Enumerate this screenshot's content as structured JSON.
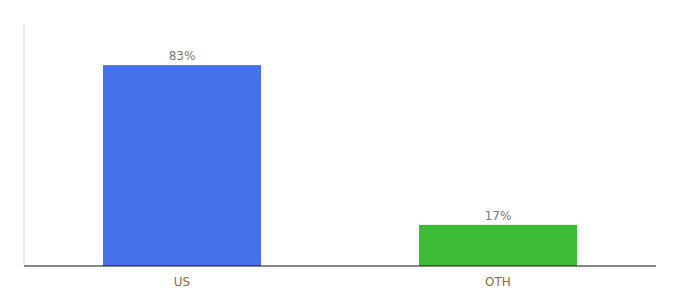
{
  "chart_data": {
    "type": "bar",
    "categories": [
      "US",
      "OTH"
    ],
    "values": [
      83,
      17
    ],
    "value_labels": [
      "83%",
      "17%"
    ],
    "colors": [
      "#4472e8",
      "#3dbb35"
    ],
    "ylim": [
      0,
      100
    ],
    "data_labels": true,
    "tick_labels": "x",
    "grid": false
  }
}
